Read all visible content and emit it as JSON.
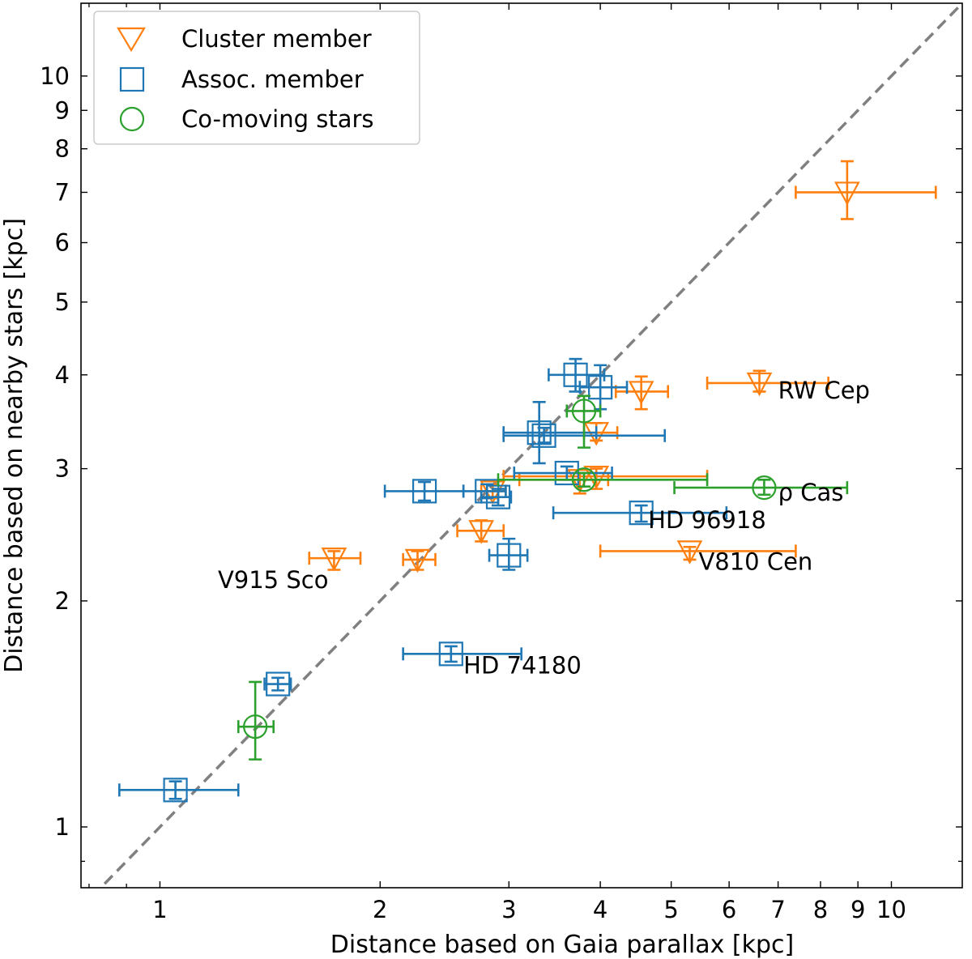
{
  "chart_data": {
    "type": "scatter",
    "xscale": "log",
    "yscale": "log",
    "xlabel": "Distance based on Gaia parallax [kpc]",
    "ylabel": "Distance based on nearby stars [kpc]",
    "xlim": [
      0.78,
      12.5
    ],
    "ylim": [
      0.83,
      12.5
    ],
    "xticks": [
      1,
      2,
      3,
      4,
      5,
      6,
      7,
      8,
      9,
      10
    ],
    "xtick_labels": [
      "1",
      "2",
      "3",
      "4",
      "5",
      "6",
      "7",
      "8",
      "9",
      "10"
    ],
    "yticks": [
      1,
      2,
      3,
      4,
      5,
      6,
      7,
      8,
      9,
      10
    ],
    "ytick_labels": [
      "1",
      "2",
      "3",
      "4",
      "5",
      "6",
      "7",
      "8",
      "9",
      "10"
    ],
    "reference_line": "y = x (dashed, gray)",
    "legend_position": "upper-left",
    "series": [
      {
        "name": "Cluster member",
        "marker": "triangle-down",
        "color": "#ff7f0e",
        "points": [
          {
            "x": 8.7,
            "y": 7.0,
            "xerr": [
              7.4,
              11.5
            ],
            "yerr": [
              6.45,
              7.7
            ]
          },
          {
            "x": 6.6,
            "y": 3.9,
            "xerr": [
              5.6,
              8.2
            ],
            "yerr": [
              3.8,
              4.05
            ]
          },
          {
            "x": 4.55,
            "y": 3.8,
            "xerr": [
              4.2,
              4.95
            ],
            "yerr": [
              3.6,
              3.98
            ]
          },
          {
            "x": 3.95,
            "y": 3.35,
            "xerr": [
              3.8,
              4.22
            ],
            "yerr": [
              3.27,
              3.45
            ]
          },
          {
            "x": 3.95,
            "y": 2.93,
            "xerr": [
              2.95,
              5.6
            ],
            "yerr": [
              2.82,
              3.0
            ]
          },
          {
            "x": 3.75,
            "y": 2.9,
            "xerr": [
              3.1,
              4.1
            ],
            "yerr": [
              2.78,
              2.96
            ]
          },
          {
            "x": 2.85,
            "y": 2.8,
            "xerr": [
              2.75,
              2.97
            ],
            "yerr": [
              2.74,
              2.86
            ]
          },
          {
            "x": 2.75,
            "y": 2.48,
            "xerr": [
              2.55,
              2.95
            ],
            "yerr": [
              2.4,
              2.56
            ]
          },
          {
            "x": 1.73,
            "y": 2.28,
            "xerr": [
              1.6,
              1.88
            ],
            "yerr": [
              2.2,
              2.33
            ]
          },
          {
            "x": 2.25,
            "y": 2.27,
            "xerr": [
              2.15,
              2.38
            ],
            "yerr": [
              2.2,
              2.33
            ]
          },
          {
            "x": 5.3,
            "y": 2.33,
            "xerr": [
              4.0,
              7.4
            ],
            "yerr": [
              2.27,
              2.36
            ]
          }
        ]
      },
      {
        "name": "Assoc. member",
        "marker": "square",
        "color": "#1f77b4",
        "points": [
          {
            "x": 3.7,
            "y": 4.0,
            "xerr": [
              3.4,
              4.05
            ],
            "yerr": [
              3.8,
              4.2
            ]
          },
          {
            "x": 4.0,
            "y": 3.85,
            "xerr": [
              3.75,
              4.35
            ],
            "yerr": [
              3.6,
              4.12
            ]
          },
          {
            "x": 3.3,
            "y": 3.35,
            "xerr": [
              2.95,
              3.95
            ],
            "yerr": [
              3.05,
              3.68
            ]
          },
          {
            "x": 3.35,
            "y": 3.32,
            "xerr": [
              2.95,
              4.9
            ],
            "yerr": [
              3.25,
              3.4
            ]
          },
          {
            "x": 3.6,
            "y": 2.96,
            "xerr": [
              3.05,
              4.15
            ],
            "yerr": [
              2.9,
              3.02
            ]
          },
          {
            "x": 2.3,
            "y": 2.8,
            "xerr": [
              2.03,
              2.6
            ],
            "yerr": [
              2.72,
              2.88
            ]
          },
          {
            "x": 2.8,
            "y": 2.8,
            "xerr": [
              2.6,
              2.97
            ],
            "yerr": [
              2.74,
              2.86
            ]
          },
          {
            "x": 2.9,
            "y": 2.75,
            "xerr": [
              2.75,
              3.02
            ],
            "yerr": [
              2.68,
              2.82
            ]
          },
          {
            "x": 4.55,
            "y": 2.62,
            "xerr": [
              3.45,
              5.95
            ],
            "yerr": [
              2.55,
              2.68
            ]
          },
          {
            "x": 3.0,
            "y": 2.3,
            "xerr": [
              2.82,
              3.18
            ],
            "yerr": [
              2.2,
              2.42
            ]
          },
          {
            "x": 2.5,
            "y": 1.7,
            "xerr": [
              2.15,
              3.12
            ],
            "yerr": [
              1.66,
              1.74
            ]
          },
          {
            "x": 1.45,
            "y": 1.55,
            "xerr": [
              1.39,
              1.51
            ],
            "yerr": [
              1.52,
              1.58
            ]
          },
          {
            "x": 1.05,
            "y": 1.12,
            "xerr": [
              0.88,
              1.28
            ],
            "yerr": [
              1.09,
              1.15
            ]
          }
        ]
      },
      {
        "name": "Co-moving stars",
        "marker": "circle",
        "color": "#2ca02c",
        "points": [
          {
            "x": 3.8,
            "y": 3.58,
            "xerr": [
              3.6,
              4.0
            ],
            "yerr": [
              3.2,
              3.75
            ]
          },
          {
            "x": 3.8,
            "y": 2.9,
            "xerr": [
              2.9,
              5.6
            ],
            "yerr": [
              2.84,
              2.96
            ]
          },
          {
            "x": 6.7,
            "y": 2.83,
            "xerr": [
              5.05,
              8.7
            ],
            "yerr": [
              2.77,
              2.9
            ]
          },
          {
            "x": 1.35,
            "y": 1.36,
            "xerr": [
              1.28,
              1.43
            ],
            "yerr": [
              1.23,
              1.56
            ]
          }
        ]
      }
    ],
    "annotations": [
      {
        "text": "RW Cep",
        "x": 7.0,
        "y": 3.72
      },
      {
        "text": "ρ Cas",
        "x": 7.0,
        "y": 2.72
      },
      {
        "text": "HD 96918",
        "x": 4.65,
        "y": 2.5
      },
      {
        "text": "V810 Cen",
        "x": 5.45,
        "y": 2.2
      },
      {
        "text": "V915 Sco",
        "x": 1.2,
        "y": 2.08
      },
      {
        "text": "HD 74180",
        "x": 2.6,
        "y": 1.6
      }
    ]
  },
  "legend": {
    "items": [
      {
        "label": "Cluster member",
        "marker": "triangle-down",
        "color": "#ff7f0e"
      },
      {
        "label": "Assoc. member",
        "marker": "square",
        "color": "#1f77b4"
      },
      {
        "label": "Co-moving stars",
        "marker": "circle",
        "color": "#2ca02c"
      }
    ]
  }
}
